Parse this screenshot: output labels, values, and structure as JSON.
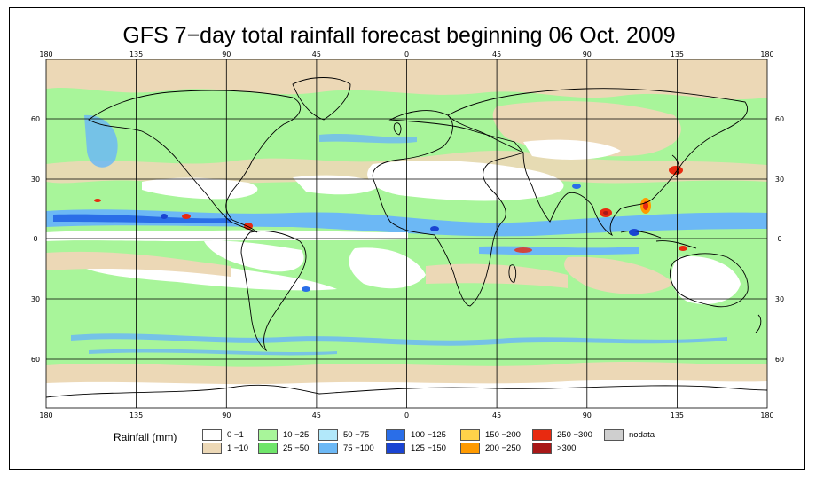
{
  "title": "GFS 7−day total rainfall forecast beginning 06 Oct. 2009",
  "lon_ticks": [
    "180",
    "135",
    "90",
    "45",
    "0",
    "45",
    "90",
    "135",
    "180"
  ],
  "lat_ticks_left": [
    "60",
    "30",
    "0",
    "30",
    "60"
  ],
  "lat_ticks_right": [
    "60",
    "30",
    "0",
    "30",
    "60"
  ],
  "legend": {
    "title": "Rainfall (mm)",
    "items": [
      {
        "label": "0 −1",
        "color": "#ffffff"
      },
      {
        "label": "1 −10",
        "color": "#ecd8b6"
      },
      {
        "label": "10 −25",
        "color": "#a8f59a"
      },
      {
        "label": "25 −50",
        "color": "#6fe56a"
      },
      {
        "label": "50 −75",
        "color": "#b2e8fa"
      },
      {
        "label": "75 −100",
        "color": "#6cb8f5"
      },
      {
        "label": "100 −125",
        "color": "#2a6ee8"
      },
      {
        "label": "125 −150",
        "color": "#1a44d2"
      },
      {
        "label": "150 −200",
        "color": "#ffd24a"
      },
      {
        "label": "200 −250",
        "color": "#ff9a00"
      },
      {
        "label": "250 −300",
        "color": "#e82a10"
      },
      {
        "label": ">300",
        "color": "#a81818"
      },
      {
        "label": "nodata",
        "color": "#cfcfcf"
      }
    ]
  }
}
